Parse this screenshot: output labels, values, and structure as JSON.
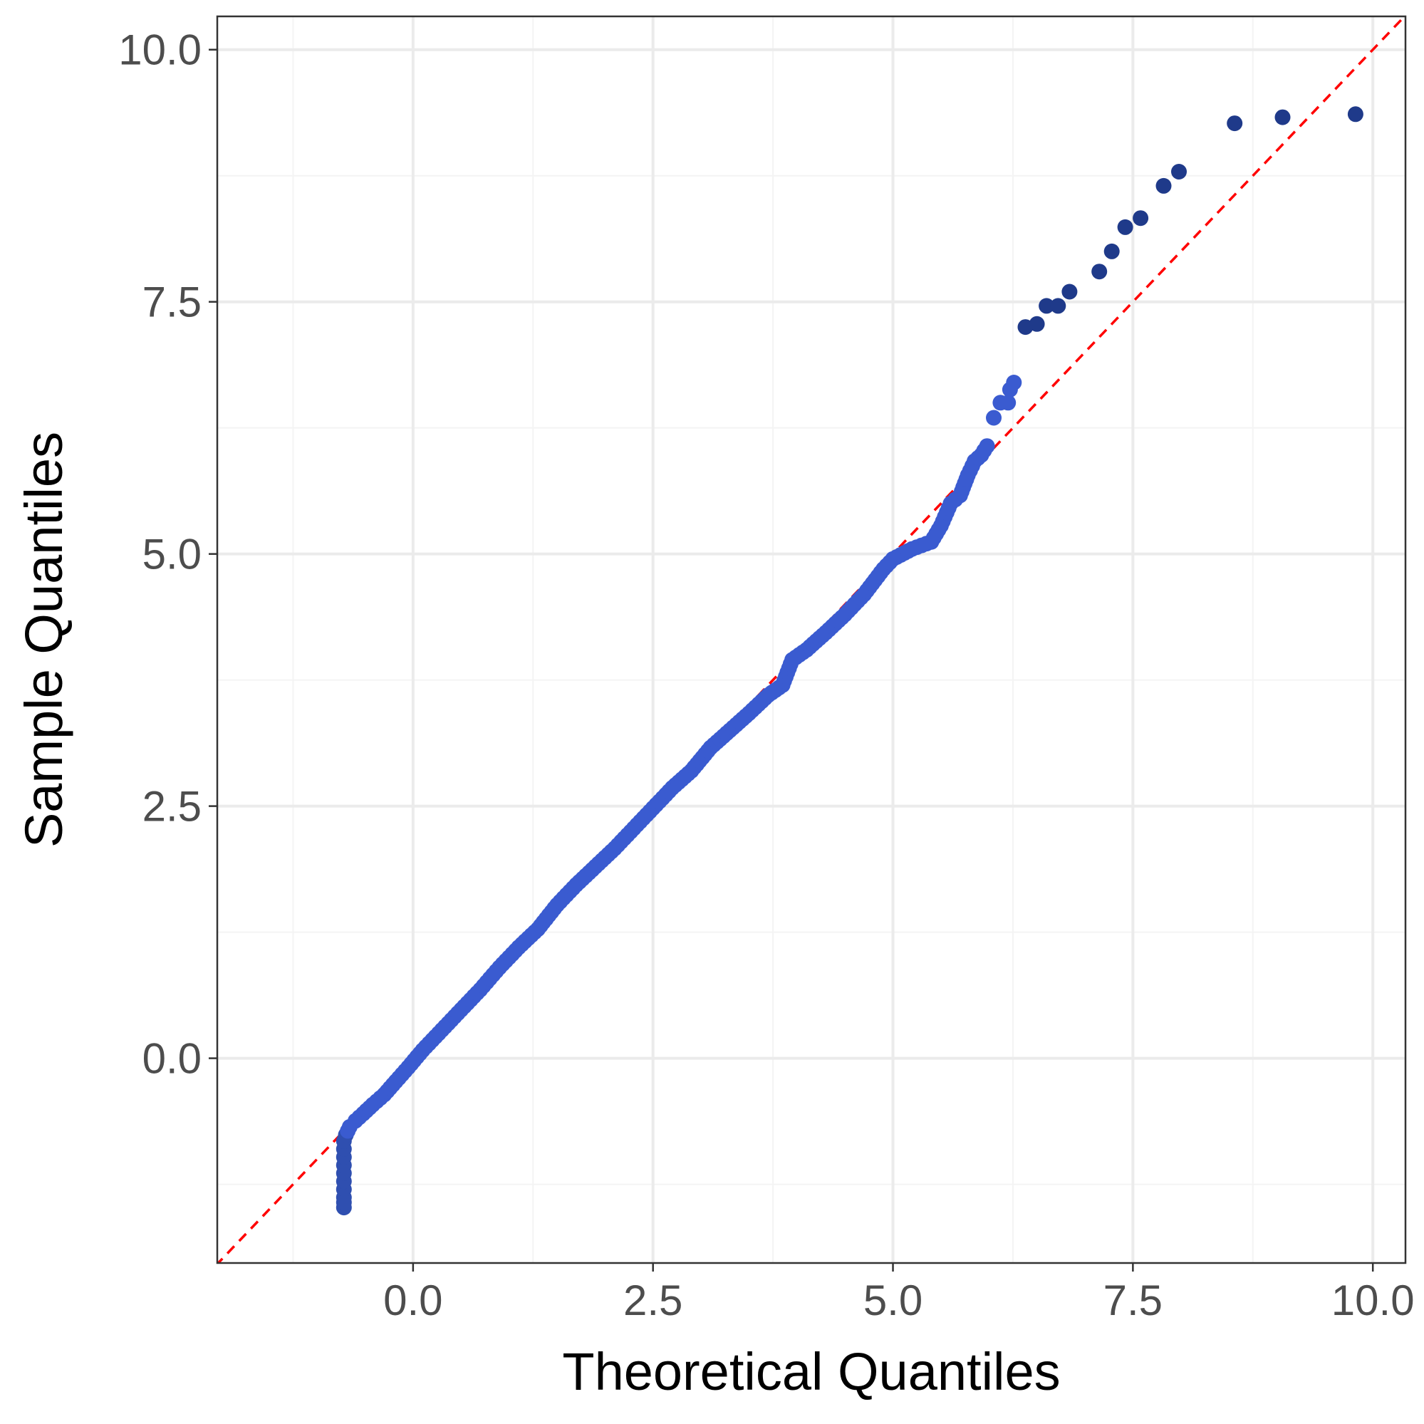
{
  "chart_data": {
    "type": "scatter",
    "title": "",
    "xlabel": "Theoretical Quantiles",
    "ylabel": "Sample Quantiles",
    "xlim": [
      -2.04,
      10.34
    ],
    "ylim": [
      -2.03,
      10.33
    ],
    "x_ticks": [
      0.0,
      2.5,
      5.0,
      7.5,
      10.0
    ],
    "x_tick_labels": [
      "0.0",
      "2.5",
      "5.0",
      "7.5",
      "10.0"
    ],
    "y_ticks": [
      0.0,
      2.5,
      5.0,
      7.5,
      10.0
    ],
    "y_tick_labels": [
      "0.0",
      "2.5",
      "5.0",
      "7.5",
      "10.0"
    ],
    "grid": true,
    "reference_line": {
      "intercept": 0,
      "slope": 1,
      "style": "dashed",
      "color": "#ff0000"
    },
    "colors": {
      "point_main": "#3a5bd0",
      "point_low": "#2f4fb0",
      "point_tail": "#1f3a8a",
      "grid_major": "#ebebeb",
      "grid_minor": "#f4f4f4",
      "panel_border": "#333333"
    },
    "series": [
      {
        "name": "quantiles",
        "points": [
          [
            -0.72,
            -1.48
          ],
          [
            -0.72,
            -1.38
          ],
          [
            -0.72,
            -1.3
          ],
          [
            -0.72,
            -1.22
          ],
          [
            -0.72,
            -1.14
          ],
          [
            -0.72,
            -1.06
          ],
          [
            -0.72,
            -0.98
          ],
          [
            -0.72,
            -0.9
          ],
          [
            -0.72,
            -0.82
          ],
          [
            -0.7,
            -0.76
          ],
          [
            -0.66,
            -0.68
          ],
          [
            -0.6,
            -0.62
          ],
          [
            -0.52,
            -0.55
          ],
          [
            -0.42,
            -0.46
          ],
          [
            -0.3,
            -0.36
          ],
          [
            -0.18,
            -0.23
          ],
          [
            -0.05,
            -0.09
          ],
          [
            0.1,
            0.08
          ],
          [
            0.3,
            0.28
          ],
          [
            0.5,
            0.48
          ],
          [
            0.7,
            0.68
          ],
          [
            0.9,
            0.9
          ],
          [
            1.1,
            1.1
          ],
          [
            1.3,
            1.28
          ],
          [
            1.5,
            1.52
          ],
          [
            1.7,
            1.72
          ],
          [
            1.9,
            1.9
          ],
          [
            2.1,
            2.08
          ],
          [
            2.3,
            2.28
          ],
          [
            2.5,
            2.48
          ],
          [
            2.7,
            2.68
          ],
          [
            2.9,
            2.85
          ],
          [
            3.1,
            3.08
          ],
          [
            3.3,
            3.25
          ],
          [
            3.5,
            3.42
          ],
          [
            3.7,
            3.6
          ],
          [
            3.85,
            3.7
          ],
          [
            3.95,
            3.95
          ],
          [
            4.1,
            4.05
          ],
          [
            4.3,
            4.22
          ],
          [
            4.5,
            4.4
          ],
          [
            4.7,
            4.6
          ],
          [
            4.9,
            4.85
          ],
          [
            5.0,
            4.95
          ],
          [
            5.2,
            5.05
          ],
          [
            5.4,
            5.12
          ],
          [
            5.5,
            5.28
          ],
          [
            5.6,
            5.5
          ],
          [
            5.7,
            5.58
          ],
          [
            5.78,
            5.78
          ],
          [
            5.85,
            5.92
          ],
          [
            5.92,
            5.98
          ],
          [
            5.98,
            6.07
          ],
          [
            6.05,
            6.35
          ],
          [
            6.12,
            6.5
          ],
          [
            6.2,
            6.5
          ],
          [
            6.22,
            6.63
          ],
          [
            6.26,
            6.7
          ],
          [
            6.38,
            7.25
          ],
          [
            6.5,
            7.28
          ],
          [
            6.6,
            7.46
          ],
          [
            6.72,
            7.46
          ],
          [
            6.84,
            7.6
          ],
          [
            7.15,
            7.8
          ],
          [
            7.28,
            8.0
          ],
          [
            7.42,
            8.24
          ],
          [
            7.58,
            8.33
          ],
          [
            7.82,
            8.65
          ],
          [
            7.98,
            8.79
          ],
          [
            8.56,
            9.27
          ],
          [
            9.06,
            9.33
          ],
          [
            9.82,
            9.36
          ]
        ]
      }
    ]
  }
}
